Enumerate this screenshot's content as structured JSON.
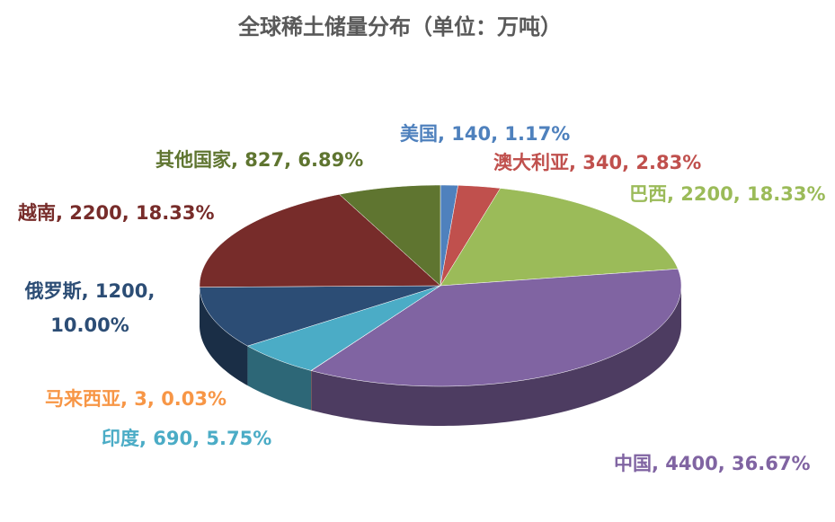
{
  "chart_data": {
    "type": "pie3d",
    "title": "全球稀土储量分布（单位：万吨）",
    "values": [
      140,
      340,
      2200,
      4400,
      3,
      690,
      1200,
      2200,
      827
    ],
    "value_labels": [
      "美国, 140, 1.17%",
      "澳大利亚, 340, 2.83%",
      "巴西, 2200, 18.33%",
      "中国, 4400, 36.67%",
      "马来西亚, 3, 0.03%",
      "印度, 690, 5.75%",
      "俄罗斯, 1200, 10.00%",
      "越南, 2200, 18.33%",
      "其他国家, 827, 6.89%"
    ],
    "colors": [
      "#4f81bd",
      "#c0504d",
      "#9bbb59",
      "#8064a2",
      "#f79646",
      "#4bacc6",
      "#2c4d75",
      "#772c2a",
      "#5f7530"
    ]
  }
}
